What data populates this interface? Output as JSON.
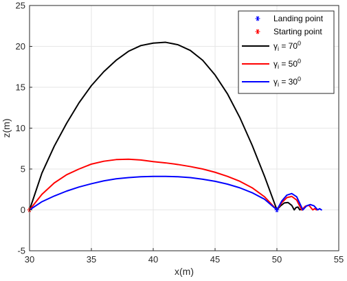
{
  "chart_data": {
    "type": "line",
    "xlabel": "x(m)",
    "ylabel": "z(m)",
    "xlim": [
      30,
      55
    ],
    "ylim": [
      -5,
      25
    ],
    "x_ticks": [
      "30",
      "35",
      "40",
      "45",
      "50",
      "55"
    ],
    "y_ticks": [
      "-5",
      "0",
      "5",
      "10",
      "15",
      "20",
      "25"
    ],
    "grid": true,
    "legend_position": "top-right",
    "colors": {
      "black": "#000000",
      "red": "#ff0000",
      "blue": "#0000ff",
      "grid": "#e6e6e6",
      "axes": "#262626"
    },
    "markers": [
      {
        "name": "Landing point",
        "color": "#0000ff",
        "points": [
          {
            "x": 50,
            "y": 0
          }
        ]
      },
      {
        "name": "Starting point",
        "color": "#ff0000",
        "points": [
          {
            "x": 30,
            "y": 0
          }
        ]
      }
    ],
    "series": [
      {
        "name_base": "γ",
        "name_sub": "i",
        "name_rest": " = 70",
        "name_sup": "0",
        "color": "#000000",
        "points": [
          [
            30,
            0
          ],
          [
            31,
            4.5
          ],
          [
            32,
            7.8
          ],
          [
            33,
            10.6
          ],
          [
            34,
            13.1
          ],
          [
            35,
            15.2
          ],
          [
            36,
            16.9
          ],
          [
            37,
            18.3
          ],
          [
            38,
            19.4
          ],
          [
            39,
            20.1
          ],
          [
            40,
            20.4
          ],
          [
            41,
            20.5
          ],
          [
            42,
            20.2
          ],
          [
            43,
            19.5
          ],
          [
            44,
            18.3
          ],
          [
            45,
            16.5
          ],
          [
            46,
            14.2
          ],
          [
            47,
            11.3
          ],
          [
            48,
            7.9
          ],
          [
            49,
            4.1
          ],
          [
            50,
            0
          ],
          [
            50.3,
            0.5
          ],
          [
            50.6,
            0.85
          ],
          [
            50.9,
            0.9
          ],
          [
            51.2,
            0.55
          ],
          [
            51.4,
            0
          ],
          [
            51.55,
            0.3
          ],
          [
            51.7,
            0.35
          ],
          [
            51.85,
            0
          ],
          [
            51.95,
            0.1
          ],
          [
            52.05,
            0
          ]
        ]
      },
      {
        "name_base": "γ",
        "name_sub": "i",
        "name_rest": " = 50",
        "name_sup": "0",
        "color": "#ff0000",
        "points": [
          [
            30,
            0
          ],
          [
            31,
            1.9
          ],
          [
            32,
            3.3
          ],
          [
            33,
            4.3
          ],
          [
            34,
            5.0
          ],
          [
            35,
            5.6
          ],
          [
            36,
            5.95
          ],
          [
            37,
            6.15
          ],
          [
            38,
            6.2
          ],
          [
            39,
            6.1
          ],
          [
            40,
            5.9
          ],
          [
            41,
            5.75
          ],
          [
            42,
            5.55
          ],
          [
            43,
            5.3
          ],
          [
            44,
            5.0
          ],
          [
            45,
            4.6
          ],
          [
            46,
            4.1
          ],
          [
            47,
            3.5
          ],
          [
            48,
            2.7
          ],
          [
            49,
            1.6
          ],
          [
            50,
            0
          ],
          [
            50.4,
            0.9
          ],
          [
            50.8,
            1.5
          ],
          [
            51.2,
            1.65
          ],
          [
            51.6,
            1.2
          ],
          [
            52,
            0
          ],
          [
            52.3,
            0.45
          ],
          [
            52.6,
            0.55
          ],
          [
            52.9,
            0
          ],
          [
            53.05,
            0.15
          ],
          [
            53.2,
            0
          ]
        ]
      },
      {
        "name_base": "γ",
        "name_sub": "i",
        "name_rest": " = 30",
        "name_sup": "0",
        "color": "#0000ff",
        "points": [
          [
            30,
            0
          ],
          [
            31,
            1.0
          ],
          [
            32,
            1.7
          ],
          [
            33,
            2.3
          ],
          [
            34,
            2.8
          ],
          [
            35,
            3.2
          ],
          [
            36,
            3.55
          ],
          [
            37,
            3.8
          ],
          [
            38,
            3.95
          ],
          [
            39,
            4.05
          ],
          [
            40,
            4.1
          ],
          [
            41,
            4.1
          ],
          [
            42,
            4.05
          ],
          [
            43,
            3.95
          ],
          [
            44,
            3.75
          ],
          [
            45,
            3.5
          ],
          [
            46,
            3.15
          ],
          [
            47,
            2.7
          ],
          [
            48,
            2.1
          ],
          [
            49,
            1.3
          ],
          [
            50,
            0
          ],
          [
            50.4,
            1.1
          ],
          [
            50.8,
            1.8
          ],
          [
            51.2,
            2.0
          ],
          [
            51.6,
            1.6
          ],
          [
            52.1,
            0
          ],
          [
            52.4,
            0.5
          ],
          [
            52.7,
            0.65
          ],
          [
            53.0,
            0.5
          ],
          [
            53.3,
            0
          ],
          [
            53.45,
            0.15
          ],
          [
            53.6,
            0
          ]
        ]
      }
    ]
  }
}
